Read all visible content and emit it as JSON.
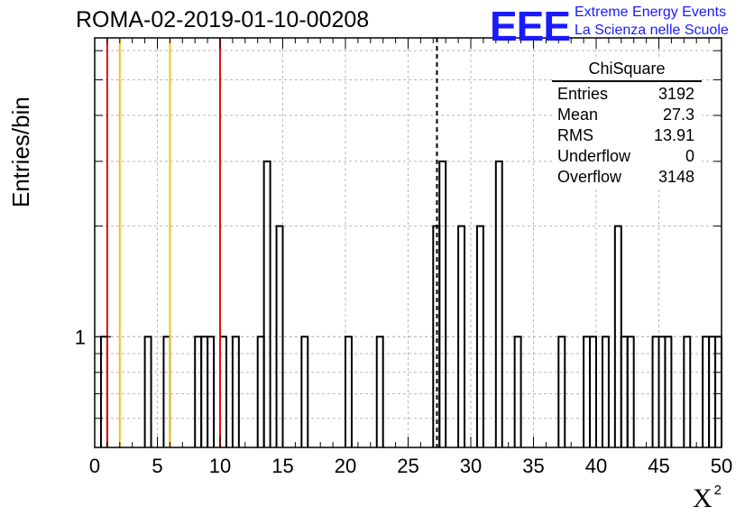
{
  "header": {
    "run_title": "ROMA-02-2019-01-10-00208",
    "logo_text": "EEE",
    "logo_line1": "Extreme Energy Events",
    "logo_line2": "La Scienza nelle Scuole"
  },
  "axes": {
    "ylabel": "Entries/bin",
    "xlabel": "X",
    "xlabel_sup": "2"
  },
  "stats": {
    "title": "ChiSquare",
    "rows": [
      {
        "label": "Entries",
        "value": "3192"
      },
      {
        "label": "Mean",
        "value": "27.3"
      },
      {
        "label": "RMS",
        "value": "13.91"
      },
      {
        "label": "Underflow",
        "value": "0"
      },
      {
        "label": "Overflow",
        "value": "3148"
      }
    ]
  },
  "colors": {
    "red_line": "#e01010",
    "yellow_line": "#f2c418",
    "logo": "#1a1aff",
    "histogram": "#000000"
  },
  "chart_data": {
    "type": "bar",
    "title": "ROMA-02-2019-01-10-00208",
    "xlabel": "X^2",
    "ylabel": "Entries/bin",
    "xlim": [
      0,
      50
    ],
    "ylim": [
      0.5,
      6.5
    ],
    "log_y": true,
    "grid": true,
    "bin_width": 0.5,
    "x_ticks": [
      0,
      5,
      10,
      15,
      20,
      25,
      30,
      35,
      40,
      45,
      50
    ],
    "y_ticks": [
      1
    ],
    "bins": [
      {
        "x": 0.5,
        "y": 1
      },
      {
        "x": 4.0,
        "y": 1
      },
      {
        "x": 5.5,
        "y": 1
      },
      {
        "x": 8.0,
        "y": 1
      },
      {
        "x": 8.5,
        "y": 1
      },
      {
        "x": 9.0,
        "y": 1
      },
      {
        "x": 10.0,
        "y": 1
      },
      {
        "x": 11.0,
        "y": 1
      },
      {
        "x": 13.0,
        "y": 1
      },
      {
        "x": 13.5,
        "y": 3
      },
      {
        "x": 14.5,
        "y": 2
      },
      {
        "x": 16.5,
        "y": 1
      },
      {
        "x": 20.0,
        "y": 1
      },
      {
        "x": 22.5,
        "y": 1
      },
      {
        "x": 27.0,
        "y": 2
      },
      {
        "x": 27.5,
        "y": 3
      },
      {
        "x": 29.0,
        "y": 2
      },
      {
        "x": 30.5,
        "y": 2
      },
      {
        "x": 32.0,
        "y": 3
      },
      {
        "x": 33.5,
        "y": 1
      },
      {
        "x": 37.0,
        "y": 1
      },
      {
        "x": 39.0,
        "y": 1
      },
      {
        "x": 39.5,
        "y": 1
      },
      {
        "x": 40.5,
        "y": 1
      },
      {
        "x": 41.5,
        "y": 2
      },
      {
        "x": 42.0,
        "y": 1
      },
      {
        "x": 42.5,
        "y": 1
      },
      {
        "x": 44.5,
        "y": 1
      },
      {
        "x": 45.0,
        "y": 1
      },
      {
        "x": 45.5,
        "y": 1
      },
      {
        "x": 47.0,
        "y": 1
      },
      {
        "x": 48.5,
        "y": 1
      },
      {
        "x": 49.0,
        "y": 1
      },
      {
        "x": 49.5,
        "y": 1
      }
    ],
    "vertical_lines": [
      {
        "x": 1.0,
        "color": "red"
      },
      {
        "x": 2.0,
        "color": "yellow"
      },
      {
        "x": 6.0,
        "color": "yellow"
      },
      {
        "x": 10.0,
        "color": "red"
      },
      {
        "x": 27.3,
        "color": "black-dashed"
      }
    ]
  }
}
